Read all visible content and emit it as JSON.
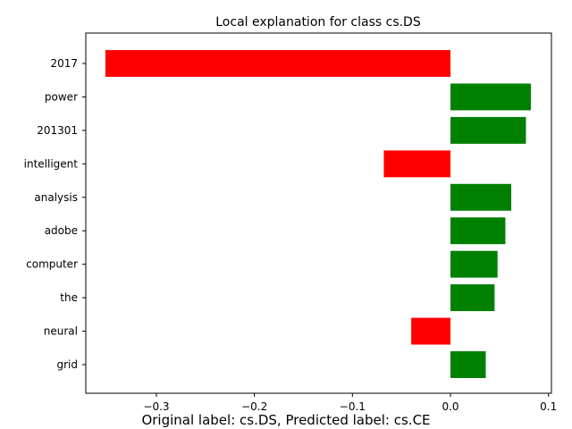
{
  "chart_data": {
    "type": "bar",
    "orientation": "horizontal",
    "title": "Local explanation for class cs.DS",
    "caption": "Original label: cs.DS, Predicted label: cs.CE",
    "xlabel": "",
    "ylabel": "",
    "categories": [
      "2017",
      "power",
      "201301",
      "intelligent",
      "analysis",
      "adobe",
      "computer",
      "the",
      "neural",
      "grid"
    ],
    "values": [
      -0.352,
      0.082,
      0.077,
      -0.068,
      0.062,
      0.056,
      0.048,
      0.045,
      -0.04,
      0.036
    ],
    "xlim": [
      -0.372,
      0.103
    ],
    "xticks": [
      -0.3,
      -0.2,
      -0.1,
      0.0,
      0.1
    ],
    "xtick_labels": [
      "−0.3",
      "−0.2",
      "−0.1",
      "0.0",
      "0.1"
    ],
    "grid": false,
    "legend": false,
    "colors": {
      "positive": "#008000",
      "negative": "#ff0000"
    }
  }
}
